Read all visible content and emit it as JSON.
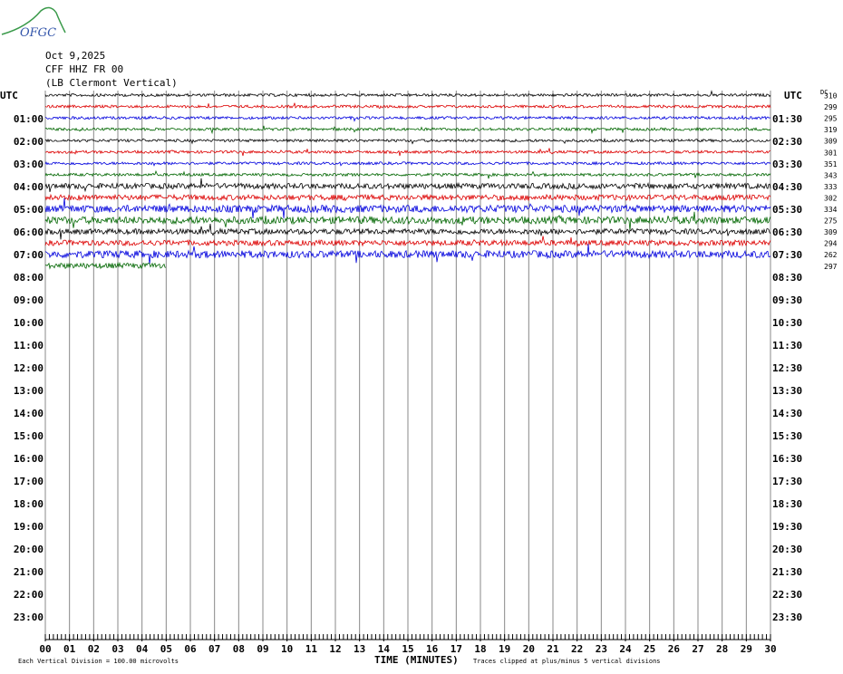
{
  "header": {
    "logo": "OFGC",
    "date": "Oct 9,2025",
    "station": "CFF HHZ FR 00",
    "location": "(LB Clermont Vertical)"
  },
  "left_axis": {
    "title": "UTC",
    "labels": [
      "01:00",
      "02:00",
      "03:00",
      "04:00",
      "05:00",
      "06:00",
      "07:00",
      "08:00",
      "09:00",
      "10:00",
      "11:00",
      "12:00",
      "13:00",
      "14:00",
      "15:00",
      "16:00",
      "17:00",
      "18:00",
      "19:00",
      "20:00",
      "21:00",
      "22:00",
      "23:00"
    ]
  },
  "right_axis": {
    "title": "UTC",
    "labels": [
      "01:30",
      "02:30",
      "03:30",
      "04:30",
      "05:30",
      "06:30",
      "07:30",
      "08:30",
      "09:30",
      "10:30",
      "11:30",
      "12:30",
      "13:30",
      "14:30",
      "15:30",
      "16:30",
      "17:30",
      "18:30",
      "19:30",
      "20:30",
      "21:30",
      "22:30",
      "23:30"
    ]
  },
  "dc": {
    "title": "DC",
    "values": [
      310,
      299,
      295,
      319,
      309,
      301,
      351,
      343,
      333,
      302,
      334,
      275,
      309,
      294,
      262,
      297
    ]
  },
  "x_axis": {
    "labels": [
      "00",
      "01",
      "02",
      "03",
      "04",
      "05",
      "06",
      "07",
      "08",
      "09",
      "10",
      "11",
      "12",
      "13",
      "14",
      "15",
      "16",
      "17",
      "18",
      "19",
      "20",
      "21",
      "22",
      "23",
      "24",
      "25",
      "26",
      "27",
      "28",
      "29",
      "30"
    ],
    "title": "TIME (MINUTES)"
  },
  "footer": {
    "scale": "Each Vertical Division =  100.00 microvolts",
    "clip": "Traces clipped at plus/minus 5 vertical divisions"
  },
  "trace_colors": [
    "#000000",
    "#dd0000",
    "#0000dd",
    "#006600"
  ]
}
